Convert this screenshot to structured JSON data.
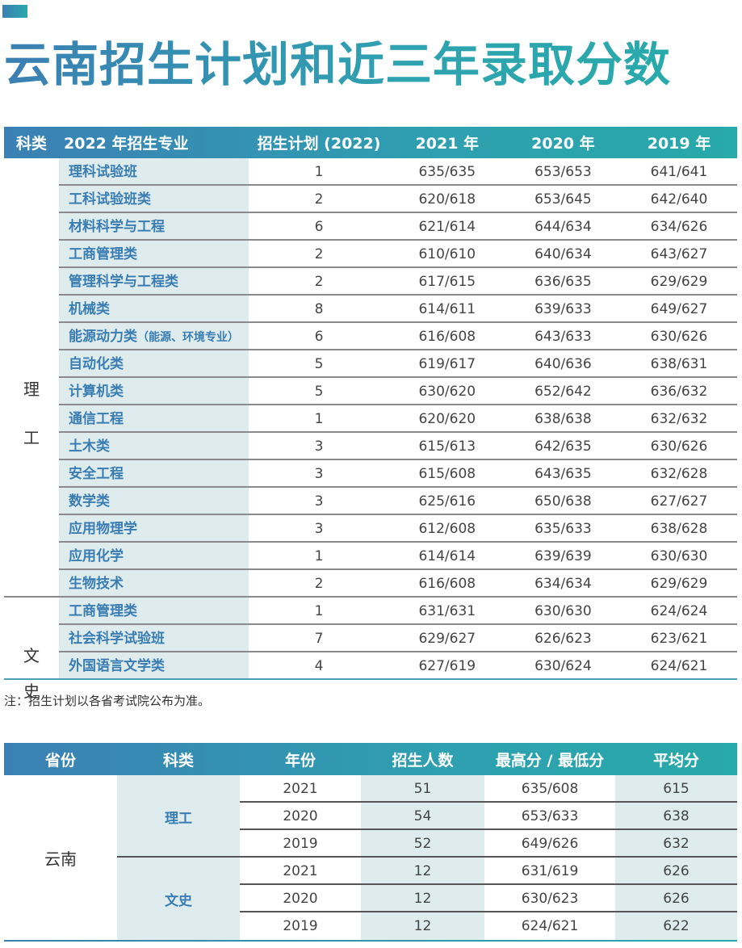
{
  "title": "云南招生计划和近三年录取分数",
  "table1": {
    "headers": [
      "科类",
      "2022 年招生专业",
      "招生计划 (2022)",
      "2021 年",
      "2020 年",
      "2019 年"
    ],
    "groups": [
      {
        "label_top": "理",
        "label_bottom": "工"
      },
      {
        "label_top": "文",
        "label_bottom": "史"
      }
    ],
    "rows": [
      {
        "category": "理工",
        "major": "理科试验班",
        "major_note": "",
        "plan": "1",
        "y2021": "635/635",
        "y2020": "653/653",
        "y2019": "641/641"
      },
      {
        "category": "理工",
        "major": "工科试验班类",
        "major_note": "",
        "plan": "2",
        "y2021": "620/618",
        "y2020": "653/645",
        "y2019": "642/640"
      },
      {
        "category": "理工",
        "major": "材料科学与工程",
        "major_note": "",
        "plan": "6",
        "y2021": "621/614",
        "y2020": "644/634",
        "y2019": "634/626"
      },
      {
        "category": "理工",
        "major": "工商管理类",
        "major_note": "",
        "plan": "2",
        "y2021": "610/610",
        "y2020": "640/634",
        "y2019": "643/627"
      },
      {
        "category": "理工",
        "major": "管理科学与工程类",
        "major_note": "",
        "plan": "2",
        "y2021": "617/615",
        "y2020": "636/635",
        "y2019": "629/629"
      },
      {
        "category": "理工",
        "major": "机械类",
        "major_note": "",
        "plan": "8",
        "y2021": "614/611",
        "y2020": "639/633",
        "y2019": "649/627"
      },
      {
        "category": "理工",
        "major": "能源动力类",
        "major_note": "（能源、环境专业）",
        "plan": "6",
        "y2021": "616/608",
        "y2020": "643/633",
        "y2019": "630/626"
      },
      {
        "category": "理工",
        "major": "自动化类",
        "major_note": "",
        "plan": "5",
        "y2021": "619/617",
        "y2020": "640/636",
        "y2019": "638/631"
      },
      {
        "category": "理工",
        "major": "计算机类",
        "major_note": "",
        "plan": "5",
        "y2021": "630/620",
        "y2020": "652/642",
        "y2019": "636/632"
      },
      {
        "category": "理工",
        "major": "通信工程",
        "major_note": "",
        "plan": "1",
        "y2021": "620/620",
        "y2020": "638/638",
        "y2019": "632/632"
      },
      {
        "category": "理工",
        "major": "土木类",
        "major_note": "",
        "plan": "3",
        "y2021": "615/613",
        "y2020": "642/635",
        "y2019": "630/626"
      },
      {
        "category": "理工",
        "major": "安全工程",
        "major_note": "",
        "plan": "3",
        "y2021": "615/608",
        "y2020": "643/635",
        "y2019": "632/628"
      },
      {
        "category": "理工",
        "major": "数学类",
        "major_note": "",
        "plan": "3",
        "y2021": "625/616",
        "y2020": "650/638",
        "y2019": "627/627"
      },
      {
        "category": "理工",
        "major": "应用物理学",
        "major_note": "",
        "plan": "3",
        "y2021": "612/608",
        "y2020": "635/633",
        "y2019": "638/628"
      },
      {
        "category": "理工",
        "major": "应用化学",
        "major_note": "",
        "plan": "1",
        "y2021": "614/614",
        "y2020": "639/639",
        "y2019": "630/630"
      },
      {
        "category": "理工",
        "major": "生物技术",
        "major_note": "",
        "plan": "2",
        "y2021": "616/608",
        "y2020": "634/634",
        "y2019": "629/629"
      },
      {
        "category": "文史",
        "major": "工商管理类",
        "major_note": "",
        "plan": "1",
        "y2021": "631/631",
        "y2020": "630/630",
        "y2019": "624/624"
      },
      {
        "category": "文史",
        "major": "社会科学试验班",
        "major_note": "",
        "plan": "7",
        "y2021": "629/627",
        "y2020": "626/623",
        "y2019": "623/621"
      },
      {
        "category": "文史",
        "major": "外国语言文学类",
        "major_note": "",
        "plan": "4",
        "y2021": "627/619",
        "y2020": "630/624",
        "y2019": "624/621"
      }
    ]
  },
  "note": "注：招生计划以各省考试院公布为准。",
  "table2": {
    "headers": [
      "省份",
      "科类",
      "年份",
      "招生人数",
      "最高分 / 最低分",
      "平均分"
    ],
    "province": "云南",
    "categories": [
      "理工",
      "文史"
    ],
    "rows": [
      {
        "year": "2021",
        "count": "51",
        "high_low": "635/608",
        "avg": "615"
      },
      {
        "year": "2020",
        "count": "54",
        "high_low": "653/633",
        "avg": "638"
      },
      {
        "year": "2019",
        "count": "52",
        "high_low": "649/626",
        "avg": "632"
      },
      {
        "year": "2021",
        "count": "12",
        "high_low": "631/619",
        "avg": "626"
      },
      {
        "year": "2020",
        "count": "12",
        "high_low": "630/623",
        "avg": "626"
      },
      {
        "year": "2019",
        "count": "12",
        "high_low": "624/621",
        "avg": "622"
      }
    ]
  },
  "colors": {
    "header_gradient_start": "#3b80b4",
    "header_gradient_end": "#28a9aa",
    "major_text": "#3a7db3",
    "shaded_cell": "#deeced"
  }
}
